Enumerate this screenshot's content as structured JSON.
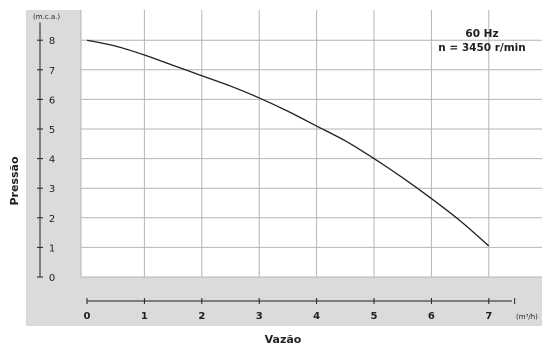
{
  "chart_data": {
    "type": "line",
    "ylabel": "Pressão",
    "xlabel": "Vazão",
    "y_unit": "(m.c.a.)",
    "x_unit": "(m³/h)",
    "annotation_lines": [
      "60 Hz",
      "n = 3450 r/min"
    ],
    "x_ticks": [
      "0",
      "1",
      "2",
      "3",
      "4",
      "5",
      "6",
      "7"
    ],
    "y_ticks": [
      "0",
      "1",
      "2",
      "3",
      "4",
      "5",
      "6",
      "7",
      "8"
    ],
    "xlim": [
      0,
      8
    ],
    "ylim": [
      0,
      9
    ],
    "grid": true,
    "series": [
      {
        "x": [
          0,
          0.5,
          1,
          1.5,
          2,
          2.5,
          3,
          3.5,
          4,
          4.5,
          5,
          5.5,
          6,
          6.5,
          7
        ],
        "y": [
          8.0,
          7.8,
          7.5,
          7.15,
          6.8,
          6.45,
          6.05,
          5.6,
          5.1,
          4.6,
          4.0,
          3.35,
          2.65,
          1.9,
          1.05
        ]
      }
    ]
  },
  "colors": {
    "frame_bg": "#d9dbdc",
    "plot_bg": "#ffffff",
    "grid": "#b4b4b4",
    "curve": "#231f20",
    "text": "#231f20"
  }
}
